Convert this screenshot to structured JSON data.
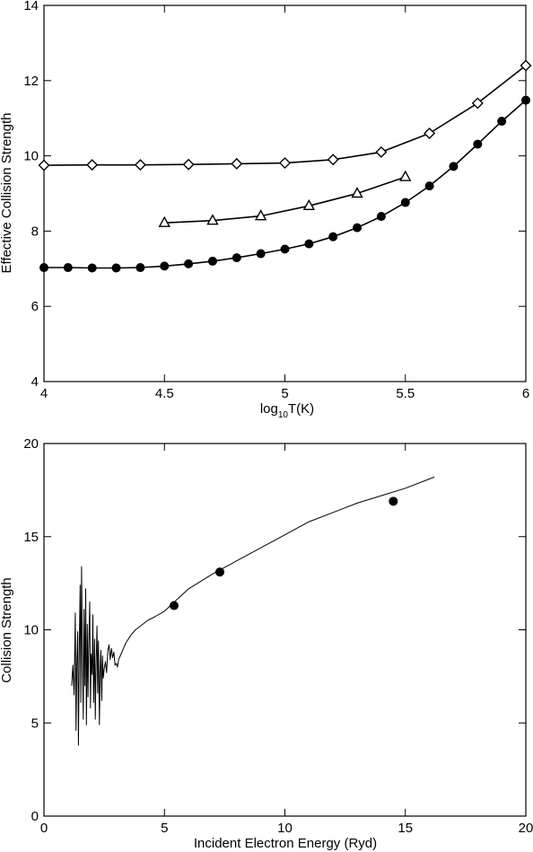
{
  "chart_data": [
    {
      "type": "line",
      "xlabel_main": "log",
      "xlabel_sub": "10",
      "xlabel_tail": "T(K)",
      "ylabel": "Effective Collision Strength",
      "xlim": [
        4,
        6
      ],
      "ylim": [
        4,
        14
      ],
      "xticks": [
        4,
        4.5,
        5,
        5.5,
        6
      ],
      "xtick_labels": [
        "4",
        "4.5",
        "5",
        "5.5",
        "6"
      ],
      "yticks": [
        4,
        6,
        8,
        10,
        12,
        14
      ],
      "ytick_labels": [
        "4",
        "6",
        "8",
        "10",
        "12",
        "14"
      ],
      "series": [
        {
          "marker": "diamond-open",
          "x": [
            4.0,
            4.2,
            4.4,
            4.6,
            4.8,
            5.0,
            5.2,
            5.4,
            5.6,
            5.8,
            6.0
          ],
          "y": [
            9.75,
            9.76,
            9.76,
            9.77,
            9.79,
            9.81,
            9.9,
            10.1,
            10.6,
            11.4,
            12.4
          ]
        },
        {
          "marker": "triangle-open",
          "x": [
            4.5,
            4.7,
            4.9,
            5.1,
            5.3,
            5.5
          ],
          "y": [
            8.22,
            8.28,
            8.4,
            8.67,
            9.0,
            9.44
          ]
        },
        {
          "marker": "circle-filled",
          "x": [
            4.0,
            4.1,
            4.2,
            4.3,
            4.4,
            4.5,
            4.6,
            4.7,
            4.8,
            4.9,
            5.0,
            5.1,
            5.2,
            5.3,
            5.4,
            5.5,
            5.6,
            5.7,
            5.8,
            5.9,
            6.0
          ],
          "y": [
            7.03,
            7.03,
            7.02,
            7.02,
            7.03,
            7.07,
            7.13,
            7.2,
            7.29,
            7.4,
            7.52,
            7.66,
            7.85,
            8.09,
            8.39,
            8.76,
            9.2,
            9.72,
            10.31,
            10.92,
            11.48
          ]
        }
      ]
    },
    {
      "type": "line",
      "xlabel": "Incident Electron Energy (Ryd)",
      "ylabel": "Collision Strength",
      "xlim": [
        0,
        20
      ],
      "ylim": [
        0,
        20
      ],
      "xticks": [
        0,
        5,
        10,
        15,
        20
      ],
      "xtick_labels": [
        "0",
        "5",
        "10",
        "15",
        "20"
      ],
      "yticks": [
        0,
        5,
        10,
        15,
        20
      ],
      "ytick_labels": [
        "0",
        "5",
        "10",
        "15",
        "20"
      ],
      "series": [
        {
          "style": "line",
          "x": [
            1.15,
            1.2,
            1.25,
            1.3,
            1.33,
            1.36,
            1.4,
            1.43,
            1.46,
            1.5,
            1.53,
            1.56,
            1.6,
            1.63,
            1.66,
            1.7,
            1.73,
            1.76,
            1.8,
            1.83,
            1.86,
            1.9,
            1.93,
            1.96,
            2.0,
            2.03,
            2.06,
            2.1,
            2.13,
            2.16,
            2.2,
            2.23,
            2.26,
            2.3,
            2.33,
            2.36,
            2.4,
            2.43,
            2.46,
            2.5,
            2.55,
            2.6,
            2.65,
            2.7,
            2.75,
            2.8,
            2.85,
            2.9,
            2.95,
            3.0,
            3.05,
            3.1,
            3.2,
            3.4,
            3.6,
            3.8,
            4.0,
            4.3,
            4.6,
            5.0,
            5.5,
            6.0,
            7.0,
            8.0,
            9.0,
            10.0,
            11.0,
            12.0,
            13.0,
            14.0,
            15.0,
            16.2
          ],
          "y": [
            7.0,
            8.1,
            6.5,
            10.9,
            4.6,
            7.9,
            9.9,
            3.8,
            8.3,
            12.4,
            6.1,
            13.4,
            8.0,
            5.2,
            11.1,
            7.0,
            12.2,
            4.9,
            10.3,
            6.4,
            9.1,
            11.5,
            5.8,
            8.7,
            7.6,
            10.8,
            6.1,
            9.5,
            5.2,
            8.0,
            10.2,
            6.6,
            9.4,
            4.9,
            7.8,
            8.9,
            6.2,
            8.6,
            7.4,
            7.9,
            8.3,
            7.7,
            8.9,
            9.2,
            8.4,
            9.0,
            8.5,
            8.8,
            8.1,
            8.2,
            8.0,
            8.4,
            8.7,
            9.3,
            9.7,
            10.0,
            10.2,
            10.5,
            10.7,
            11.0,
            11.6,
            12.2,
            13.0,
            13.7,
            14.4,
            15.1,
            15.8,
            16.3,
            16.8,
            17.2,
            17.6,
            18.2
          ]
        },
        {
          "style": "scatter",
          "marker": "circle-filled",
          "x": [
            5.4,
            7.3,
            14.5
          ],
          "y": [
            11.3,
            13.1,
            16.9
          ]
        }
      ]
    }
  ]
}
